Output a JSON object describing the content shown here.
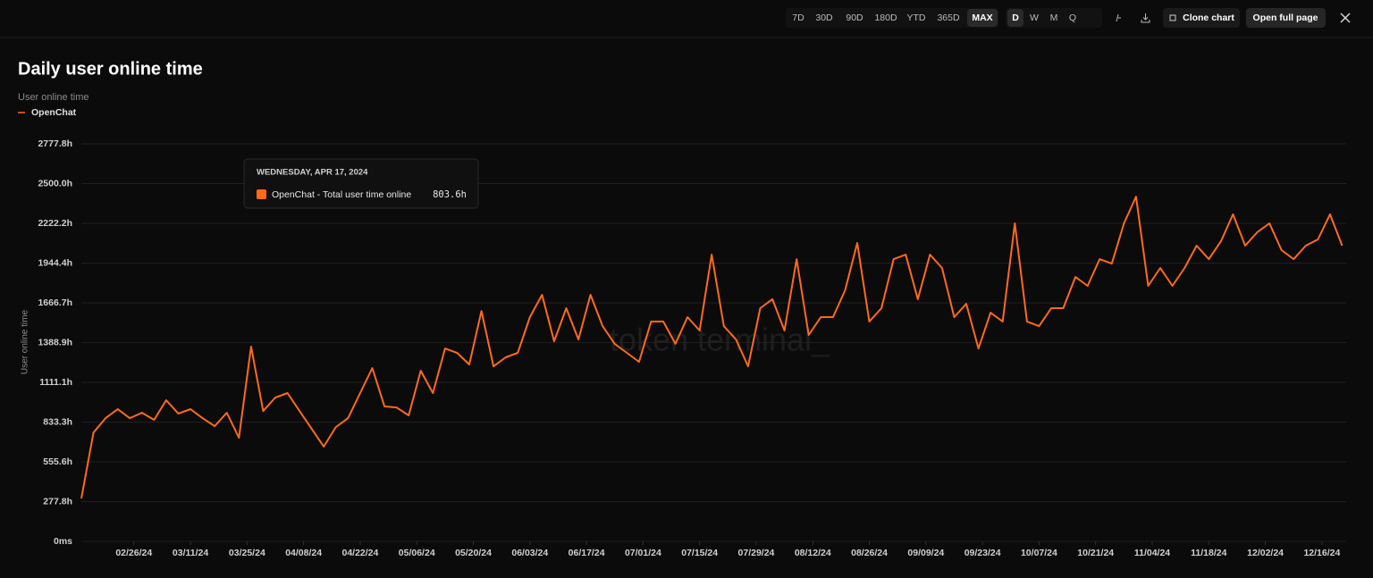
{
  "toolbar": {
    "ranges": [
      "7D",
      "30D",
      "90D",
      "180D",
      "YTD",
      "365D",
      "MAX"
    ],
    "active_range": "MAX",
    "intervals": [
      "D",
      "W",
      "M",
      "Q"
    ],
    "active_interval": "D",
    "actions": [
      "Clone chart",
      "Open full page"
    ]
  },
  "chart_data": {
    "type": "line",
    "title": "Daily user online time",
    "subtitle": "User online time",
    "y_label": "User online time",
    "watermark": "token terminal_",
    "x": [
      "2024-02-13",
      "2024-02-16",
      "2024-02-19",
      "2024-02-22",
      "2024-02-25",
      "2024-02-28",
      "2024-03-02",
      "2024-03-05",
      "2024-03-08",
      "2024-03-11",
      "2024-03-14",
      "2024-03-17",
      "2024-03-20",
      "2024-03-23",
      "2024-03-26",
      "2024-03-29",
      "2024-04-01",
      "2024-04-04",
      "2024-04-07",
      "2024-04-10",
      "2024-04-13",
      "2024-04-16",
      "2024-04-19",
      "2024-04-22",
      "2024-04-25",
      "2024-04-28",
      "2024-05-01",
      "2024-05-04",
      "2024-05-07",
      "2024-05-10",
      "2024-05-13",
      "2024-05-16",
      "2024-05-19",
      "2024-05-22",
      "2024-05-25",
      "2024-05-28",
      "2024-05-31",
      "2024-06-03",
      "2024-06-06",
      "2024-06-09",
      "2024-06-12",
      "2024-06-15",
      "2024-06-18",
      "2024-06-21",
      "2024-06-24",
      "2024-06-27",
      "2024-06-30",
      "2024-07-03",
      "2024-07-06",
      "2024-07-09",
      "2024-07-12",
      "2024-07-15",
      "2024-07-18",
      "2024-07-21",
      "2024-07-24",
      "2024-07-27",
      "2024-07-30",
      "2024-08-02",
      "2024-08-05",
      "2024-08-08",
      "2024-08-11",
      "2024-08-14",
      "2024-08-17",
      "2024-08-20",
      "2024-08-23",
      "2024-08-26",
      "2024-08-29",
      "2024-09-01",
      "2024-09-04",
      "2024-09-07",
      "2024-09-10",
      "2024-09-13",
      "2024-09-16",
      "2024-09-19",
      "2024-09-22",
      "2024-09-25",
      "2024-09-28",
      "2024-10-01",
      "2024-10-04",
      "2024-10-07",
      "2024-10-10",
      "2024-10-13",
      "2024-10-16",
      "2024-10-19",
      "2024-10-22",
      "2024-10-25",
      "2024-10-28",
      "2024-10-31",
      "2024-11-03",
      "2024-11-06",
      "2024-11-09",
      "2024-11-12",
      "2024-11-15",
      "2024-11-18",
      "2024-11-21",
      "2024-11-24",
      "2024-11-27",
      "2024-11-30",
      "2024-12-03",
      "2024-12-06",
      "2024-12-09",
      "2024-12-12",
      "2024-12-15",
      "2024-12-18",
      "2024-12-21"
    ],
    "series": [
      {
        "name": "OpenChat",
        "color": "#ff6a1a",
        "values": [
          300,
          760,
          861,
          924,
          861,
          899,
          849,
          986,
          893,
          924,
          861,
          805,
          899,
          724,
          1361,
          911,
          1005,
          1036,
          911,
          786,
          662,
          799,
          861,
          1036,
          1211,
          943,
          936,
          880,
          1192,
          1036,
          1348,
          1317,
          1236,
          1610,
          1223,
          1286,
          1317,
          1567,
          1723,
          1398,
          1629,
          1411,
          1723,
          1504,
          1380,
          1317,
          1255,
          1536,
          1536,
          1380,
          1567,
          1473,
          2004,
          1504,
          1411,
          1223,
          1629,
          1692,
          1473,
          1972,
          1442,
          1567,
          1567,
          1754,
          2085,
          1536,
          1629,
          1972,
          2004,
          1692,
          2004,
          1910,
          1567,
          1660,
          1348,
          1598,
          1536,
          2222,
          1536,
          1504,
          1629,
          1629,
          1848,
          1785,
          1972,
          1941,
          2222,
          2409,
          1785,
          1910,
          1785,
          1910,
          2066,
          1972,
          2097,
          2285,
          2066,
          2160,
          2222,
          2035,
          1972,
          2066,
          2110,
          2285,
          2066
        ]
      }
    ],
    "xlim": [
      "2024-02-13",
      "2024-12-22"
    ],
    "xticks": [
      {
        "value": "2024-02-26",
        "label": "02/26/24"
      },
      {
        "value": "2024-03-11",
        "label": "03/11/24"
      },
      {
        "value": "2024-03-25",
        "label": "03/25/24"
      },
      {
        "value": "2024-04-08",
        "label": "04/08/24"
      },
      {
        "value": "2024-04-22",
        "label": "04/22/24"
      },
      {
        "value": "2024-05-06",
        "label": "05/06/24"
      },
      {
        "value": "2024-05-20",
        "label": "05/20/24"
      },
      {
        "value": "2024-06-03",
        "label": "06/03/24"
      },
      {
        "value": "2024-06-17",
        "label": "06/17/24"
      },
      {
        "value": "2024-07-01",
        "label": "07/01/24"
      },
      {
        "value": "2024-07-15",
        "label": "07/15/24"
      },
      {
        "value": "2024-07-29",
        "label": "07/29/24"
      },
      {
        "value": "2024-08-12",
        "label": "08/12/24"
      },
      {
        "value": "2024-08-26",
        "label": "08/26/24"
      },
      {
        "value": "2024-09-09",
        "label": "09/09/24"
      },
      {
        "value": "2024-09-23",
        "label": "09/23/24"
      },
      {
        "value": "2024-10-07",
        "label": "10/07/24"
      },
      {
        "value": "2024-10-21",
        "label": "10/21/24"
      },
      {
        "value": "2024-11-04",
        "label": "11/04/24"
      },
      {
        "value": "2024-11-18",
        "label": "11/18/24"
      },
      {
        "value": "2024-12-02",
        "label": "12/02/24"
      },
      {
        "value": "2024-12-16",
        "label": "12/16/24"
      }
    ],
    "ylim": [
      0,
      2777.8
    ],
    "yticks": [
      {
        "value": 0,
        "label": "0ms"
      },
      {
        "value": 277.8,
        "label": "277.8h"
      },
      {
        "value": 555.6,
        "label": "555.6h"
      },
      {
        "value": 833.3,
        "label": "833.3h"
      },
      {
        "value": 1111.1,
        "label": "1111.1h"
      },
      {
        "value": 1388.9,
        "label": "1388.9h"
      },
      {
        "value": 1666.7,
        "label": "1666.7h"
      },
      {
        "value": 1944.4,
        "label": "1944.4h"
      },
      {
        "value": 2222.2,
        "label": "2222.2h"
      },
      {
        "value": 2500.0,
        "label": "2500.0h"
      },
      {
        "value": 2777.8,
        "label": "2777.8h"
      }
    ],
    "grid": true,
    "tooltip": {
      "date": "WEDNESDAY, APR 17, 2024",
      "label": "OpenChat - Total user time online",
      "value": "803.6h"
    }
  }
}
